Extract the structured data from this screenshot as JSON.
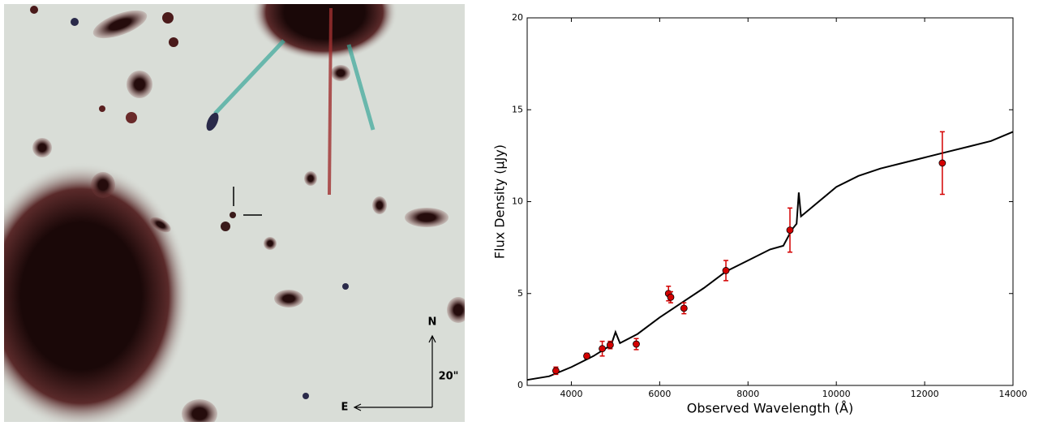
{
  "image": {
    "north_label": "N",
    "east_label": "E",
    "scale_label": "20\""
  },
  "chart_data": {
    "type": "line",
    "xlabel": "Observed Wavelength (Å)",
    "ylabel": "Flux Density (μJy)",
    "xlim": [
      3000,
      14000
    ],
    "xticks": [
      4000,
      6000,
      8000,
      10000,
      12000,
      14000
    ],
    "ylim": [
      0,
      20
    ],
    "yticks": [
      0,
      5,
      10,
      15,
      20
    ],
    "series": [
      {
        "type": "line",
        "color": "#000000",
        "x": [
          3000,
          3500,
          4000,
          4500,
          4900,
          5000,
          5100,
          5500,
          6000,
          6500,
          7000,
          7500,
          8000,
          8500,
          8800,
          9000,
          9100,
          9150,
          9200,
          9400,
          10000,
          10500,
          11000,
          11500,
          12000,
          12500,
          13000,
          13500,
          14000
        ],
        "values": [
          0.3,
          0.5,
          1.0,
          1.6,
          2.2,
          2.9,
          2.3,
          2.8,
          3.7,
          4.5,
          5.3,
          6.2,
          6.8,
          7.4,
          7.6,
          8.5,
          8.8,
          10.5,
          9.2,
          9.6,
          10.8,
          11.4,
          11.8,
          12.1,
          12.4,
          12.7,
          13.0,
          13.3,
          13.8
        ]
      },
      {
        "type": "errorbar",
        "color": "#d40000",
        "x": [
          3650,
          4350,
          4700,
          4880,
          5470,
          6200,
          6250,
          6550,
          7500,
          8950,
          12400
        ],
        "values": [
          0.8,
          1.6,
          2.0,
          2.2,
          2.25,
          5.0,
          4.8,
          4.2,
          6.25,
          8.45,
          12.1
        ],
        "errors": [
          0.2,
          0.15,
          0.4,
          0.2,
          0.3,
          0.4,
          0.3,
          0.3,
          0.55,
          1.2,
          1.7
        ]
      }
    ]
  }
}
